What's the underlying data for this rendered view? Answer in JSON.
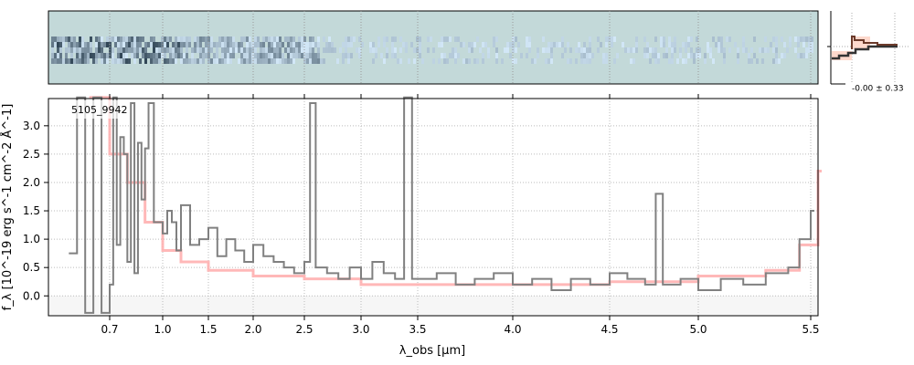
{
  "chart_data": {
    "type": "line",
    "label": "5105_9942",
    "xlabel": "λ_obs [μm]",
    "ylabel": "f_λ [10^-19 erg s^-1 cm^-2 Å^-1]",
    "xlim": [
      0.55,
      5.52
    ],
    "ylim": [
      -0.35,
      3.48
    ],
    "grid": true,
    "x_ticks": [
      "0.7",
      "1.0",
      "1.5",
      "2.0",
      "2.5",
      "3.0",
      "3.5",
      "4.0",
      "4.5",
      "5.0",
      "5.5"
    ],
    "y_ticks": [
      "0.0",
      "0.5",
      "1.0",
      "1.5",
      "2.0",
      "2.5",
      "3.0"
    ],
    "series": [
      {
        "role": "data",
        "color": "#808080",
        "x": [
          0.6,
          0.62,
          0.64,
          0.66,
          0.68,
          0.7,
          0.72,
          0.74,
          0.76,
          0.78,
          0.8,
          0.82,
          0.84,
          0.86,
          0.88,
          0.9,
          0.92,
          0.95,
          1.0,
          1.05,
          1.1,
          1.15,
          1.2,
          1.3,
          1.4,
          1.5,
          1.6,
          1.7,
          1.8,
          1.9,
          2.0,
          2.1,
          2.2,
          2.3,
          2.4,
          2.5,
          2.55,
          2.6,
          2.7,
          2.8,
          2.9,
          3.0,
          3.1,
          3.2,
          3.3,
          3.38,
          3.45,
          3.6,
          3.7,
          3.8,
          3.9,
          4.0,
          4.1,
          4.2,
          4.3,
          4.4,
          4.5,
          4.6,
          4.7,
          4.76,
          4.8,
          4.9,
          5.0,
          5.1,
          5.2,
          5.3,
          5.4,
          5.45,
          5.5
        ],
        "y": [
          0.75,
          3.5,
          -0.3,
          3.5,
          -0.3,
          0.2,
          3.5,
          0.9,
          2.8,
          2.5,
          0.6,
          3.4,
          0.4,
          2.7,
          1.7,
          2.6,
          3.4,
          1.3,
          1.1,
          1.5,
          1.3,
          0.8,
          1.6,
          0.9,
          1.0,
          1.2,
          0.7,
          1.0,
          0.8,
          0.6,
          0.9,
          0.7,
          0.6,
          0.5,
          0.4,
          0.6,
          3.4,
          0.5,
          0.4,
          0.3,
          0.5,
          0.3,
          0.6,
          0.4,
          0.3,
          3.5,
          0.3,
          0.4,
          0.2,
          0.3,
          0.4,
          0.2,
          0.3,
          0.1,
          0.3,
          0.2,
          0.4,
          0.3,
          0.2,
          1.8,
          0.2,
          0.3,
          0.1,
          0.3,
          0.2,
          0.4,
          0.5,
          1.0,
          1.5
        ]
      },
      {
        "role": "model",
        "color": "#ffb0b0",
        "x": [
          0.65,
          0.7,
          0.8,
          0.9,
          1.0,
          1.2,
          1.5,
          2.0,
          2.5,
          3.0,
          3.5,
          4.0,
          4.5,
          5.0,
          5.3,
          5.45,
          5.52
        ],
        "y": [
          3.5,
          2.5,
          2.0,
          1.3,
          0.8,
          0.6,
          0.45,
          0.35,
          0.3,
          0.2,
          0.2,
          0.2,
          0.25,
          0.35,
          0.45,
          0.9,
          2.2
        ]
      }
    ],
    "inset": {
      "annotation": "-0.00 ± 0.33"
    },
    "colors": {
      "spectrum2d_bg": "#c3d9d9",
      "data": "#808080",
      "model": "#ffb0b0",
      "profile": "#5a3a30"
    }
  }
}
